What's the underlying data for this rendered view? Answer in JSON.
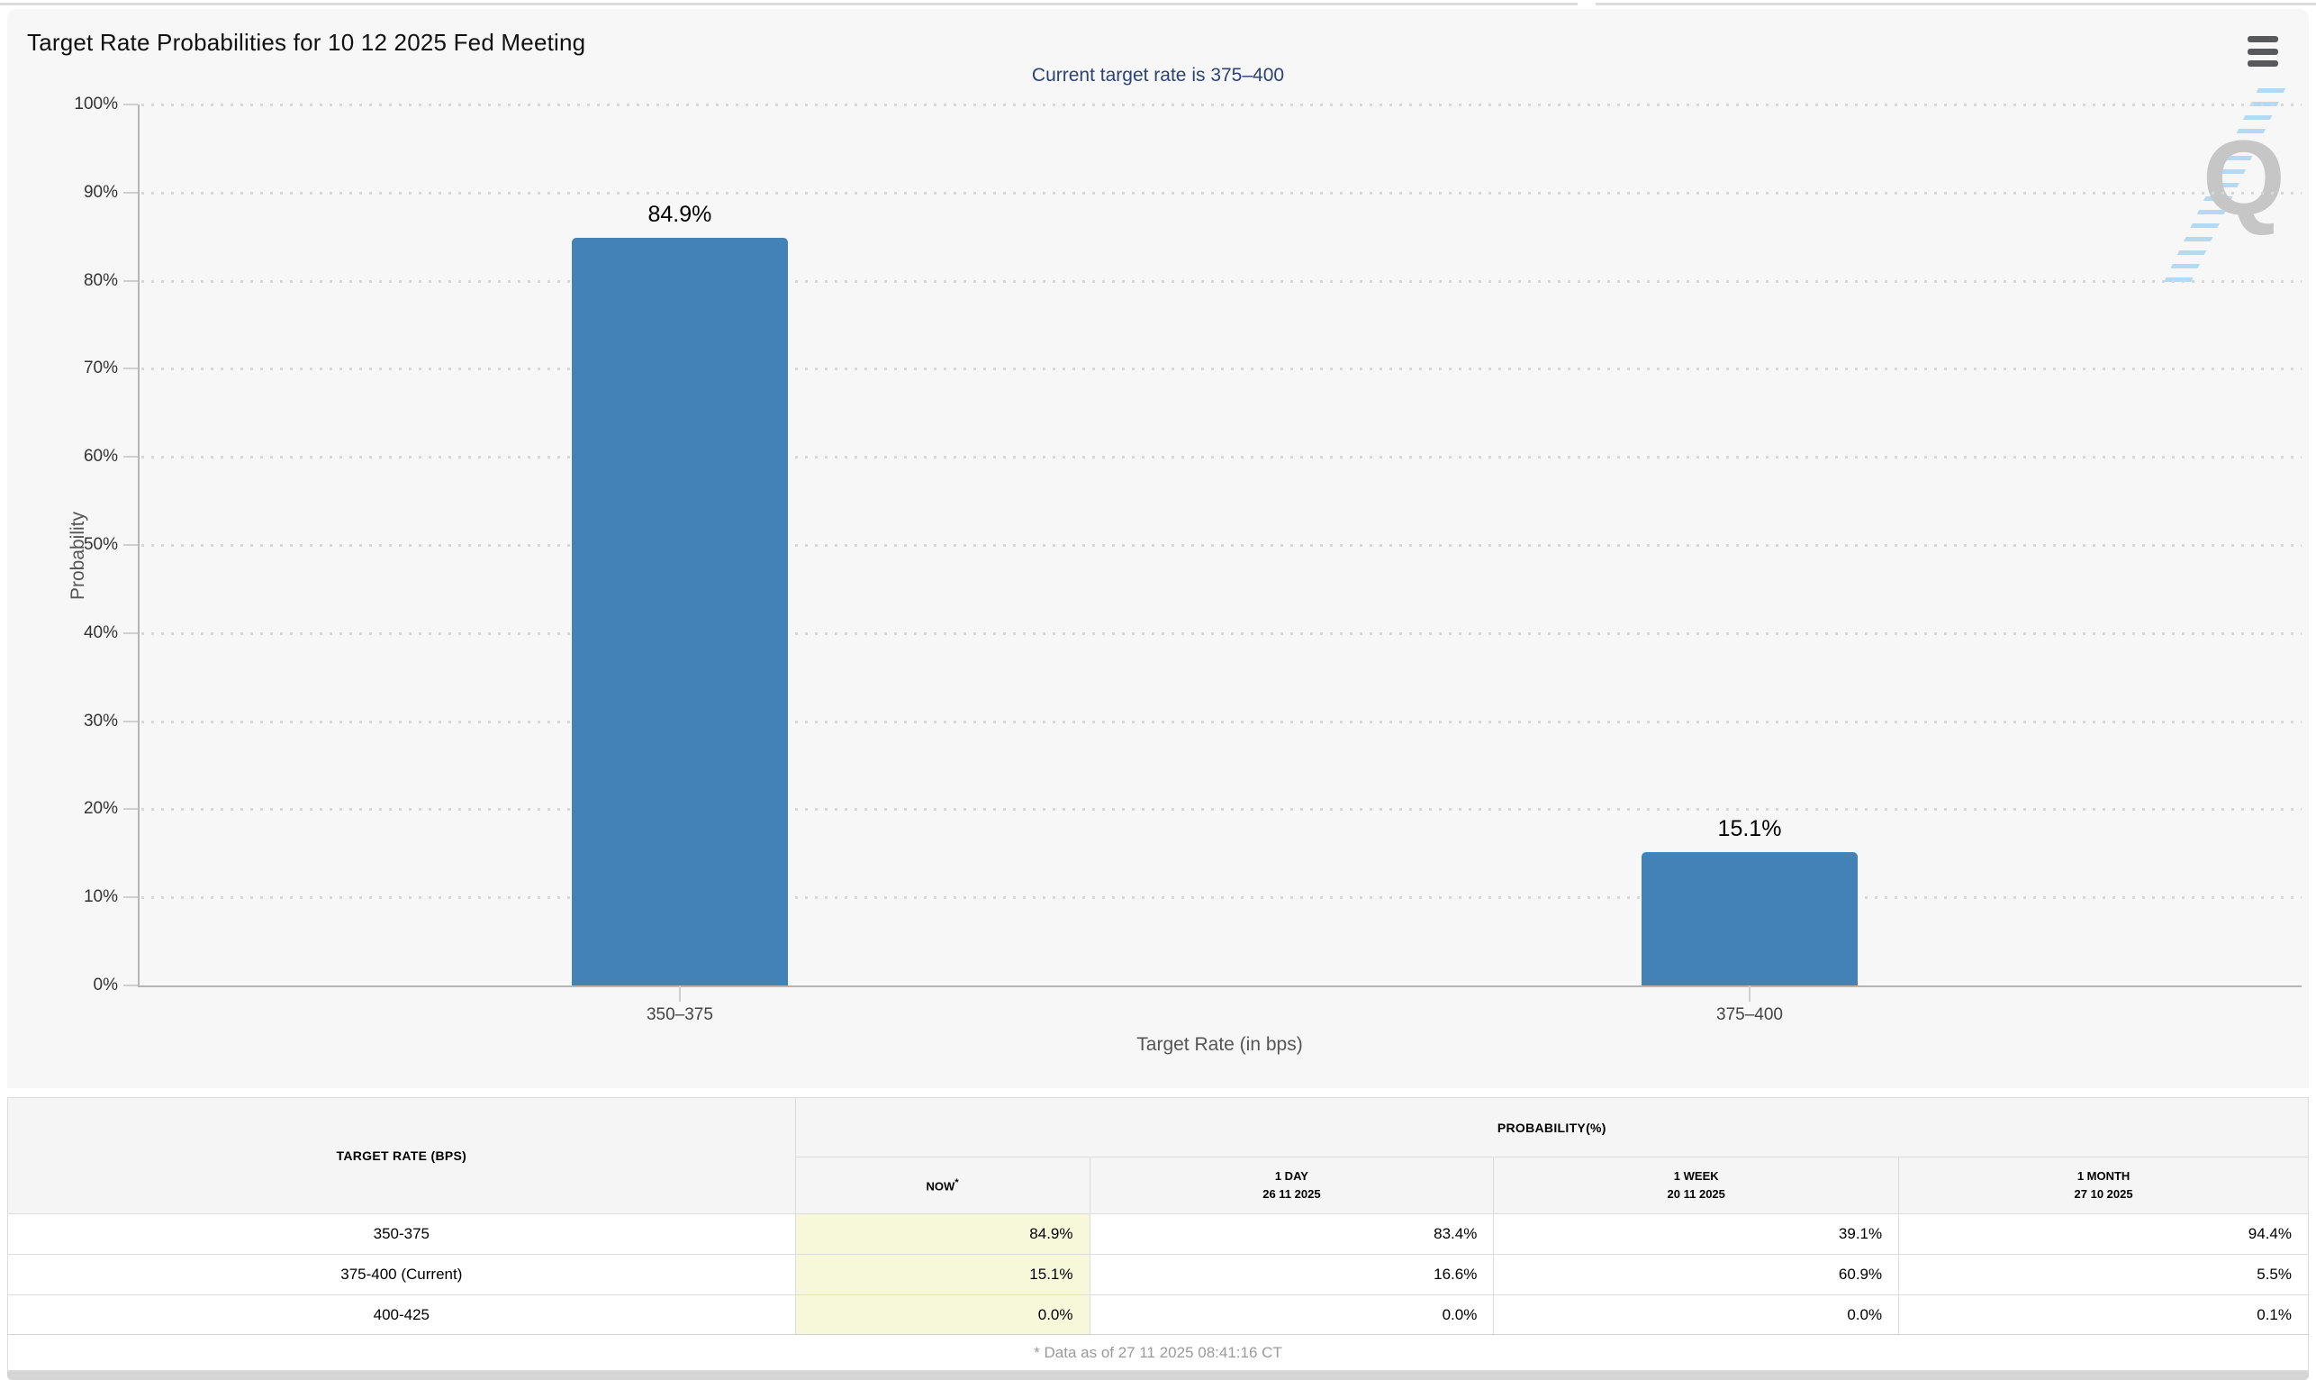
{
  "page": {
    "title": "Target Rate Probabilities for 10 12 2025 Fed Meeting",
    "watermark_letter": "Q",
    "footer_note": "* Data as of 27 11 2025 08:41:16 CT"
  },
  "chart_data": {
    "type": "bar",
    "title": "Target Rate Probabilities for 10 12 2025 Fed Meeting",
    "subtitle": "Current target rate is 375–400",
    "categories": [
      "350–375",
      "375–400"
    ],
    "values": [
      84.9,
      15.1
    ],
    "value_labels": [
      "84.9%",
      "15.1%"
    ],
    "xlabel": "Target Rate (in bps)",
    "ylabel": "Probability",
    "ylim": [
      0,
      100
    ],
    "ytick_step": 10,
    "ytick_labels": [
      "0%",
      "10%",
      "20%",
      "30%",
      "40%",
      "50%",
      "60%",
      "70%",
      "80%",
      "90%",
      "100%"
    ],
    "grid": "dotted-horizontal",
    "legend": "none",
    "bar_color": "#4282b6"
  },
  "table": {
    "col1_header": "TARGET RATE (BPS)",
    "group_header": "PROBABILITY(%)",
    "sub_headers": [
      {
        "line1": "NOW",
        "sup": "*",
        "line2": ""
      },
      {
        "line1": "1 DAY",
        "sup": "",
        "line2": "26 11 2025"
      },
      {
        "line1": "1 WEEK",
        "sup": "",
        "line2": "20 11 2025"
      },
      {
        "line1": "1 MONTH",
        "sup": "",
        "line2": "27 10 2025"
      }
    ],
    "rows": [
      {
        "label": "350-375",
        "now": "84.9%",
        "day": "83.4%",
        "week": "39.1%",
        "month": "94.4%"
      },
      {
        "label": "375-400 (Current)",
        "now": "15.1%",
        "day": "16.6%",
        "week": "60.9%",
        "month": "5.5%"
      },
      {
        "label": "400-425",
        "now": "0.0%",
        "day": "0.0%",
        "week": "0.0%",
        "month": "0.1%"
      }
    ]
  },
  "colors": {
    "bar": "#4282b6",
    "panel_background": "#f7f7f7",
    "subtitle_text": "#2d4373",
    "now_column_highlight": "#f7f7d9",
    "watermark_gray": "#c6c6c6",
    "watermark_blue": "#7dc1ee"
  }
}
